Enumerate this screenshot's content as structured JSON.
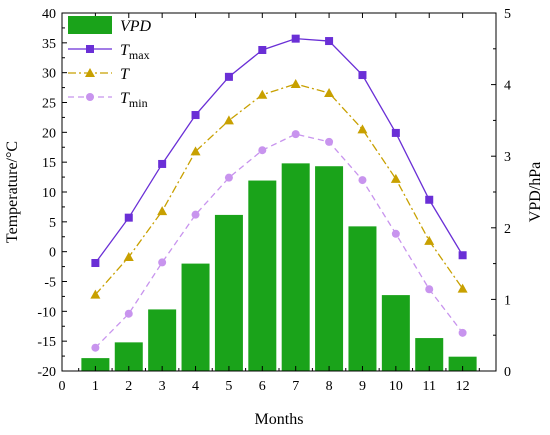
{
  "chart_data": {
    "type": "bar+line",
    "x": [
      1,
      2,
      3,
      4,
      5,
      6,
      7,
      8,
      9,
      10,
      11,
      12
    ],
    "xlabel": "Months",
    "xlim": [
      0,
      13
    ],
    "xticks": [
      "0",
      "1",
      "2",
      "3",
      "4",
      "5",
      "6",
      "7",
      "8",
      "9",
      "10",
      "11",
      "12"
    ],
    "ylabel_left": "Temperature/°C",
    "ylim_left": [
      -20,
      40
    ],
    "yticks_left": [
      "-20",
      "-15",
      "-10",
      "-5",
      "0",
      "5",
      "10",
      "15",
      "20",
      "25",
      "30",
      "35",
      "40"
    ],
    "ylabel_right": "VPD/hPa",
    "ylim_right": [
      0,
      5
    ],
    "yticks_right": [
      "0",
      "1",
      "2",
      "3",
      "4",
      "5"
    ],
    "bars": {
      "name": "VPD",
      "axis": "right",
      "color": "#1aa31a",
      "values": [
        0.18,
        0.4,
        0.86,
        1.5,
        2.18,
        2.66,
        2.9,
        2.86,
        2.02,
        1.06,
        0.46,
        0.2
      ]
    },
    "series": [
      {
        "name": "T",
        "subscript": "max",
        "axis": "left",
        "color": "#6a2fd6",
        "marker": "square",
        "line": "solid",
        "values": [
          -1.9,
          5.7,
          14.7,
          22.9,
          29.3,
          33.8,
          35.7,
          35.3,
          29.6,
          19.9,
          8.7,
          -0.6
        ]
      },
      {
        "name": "T",
        "subscript": "",
        "axis": "left",
        "color": "#c8a000",
        "marker": "triangle",
        "line": "dashdot",
        "values": [
          -7.2,
          -0.9,
          6.8,
          16.8,
          22.0,
          26.3,
          28.1,
          26.6,
          20.5,
          12.2,
          1.8,
          -6.2
        ]
      },
      {
        "name": "T",
        "subscript": "min",
        "axis": "left",
        "color": "#c894ee",
        "marker": "circle",
        "line": "dashed",
        "values": [
          -16.1,
          -10.4,
          -1.8,
          6.2,
          12.4,
          17.0,
          19.7,
          18.4,
          12.0,
          3.0,
          -6.3,
          -13.6
        ]
      }
    ],
    "legend": "top-left",
    "grid": false
  }
}
